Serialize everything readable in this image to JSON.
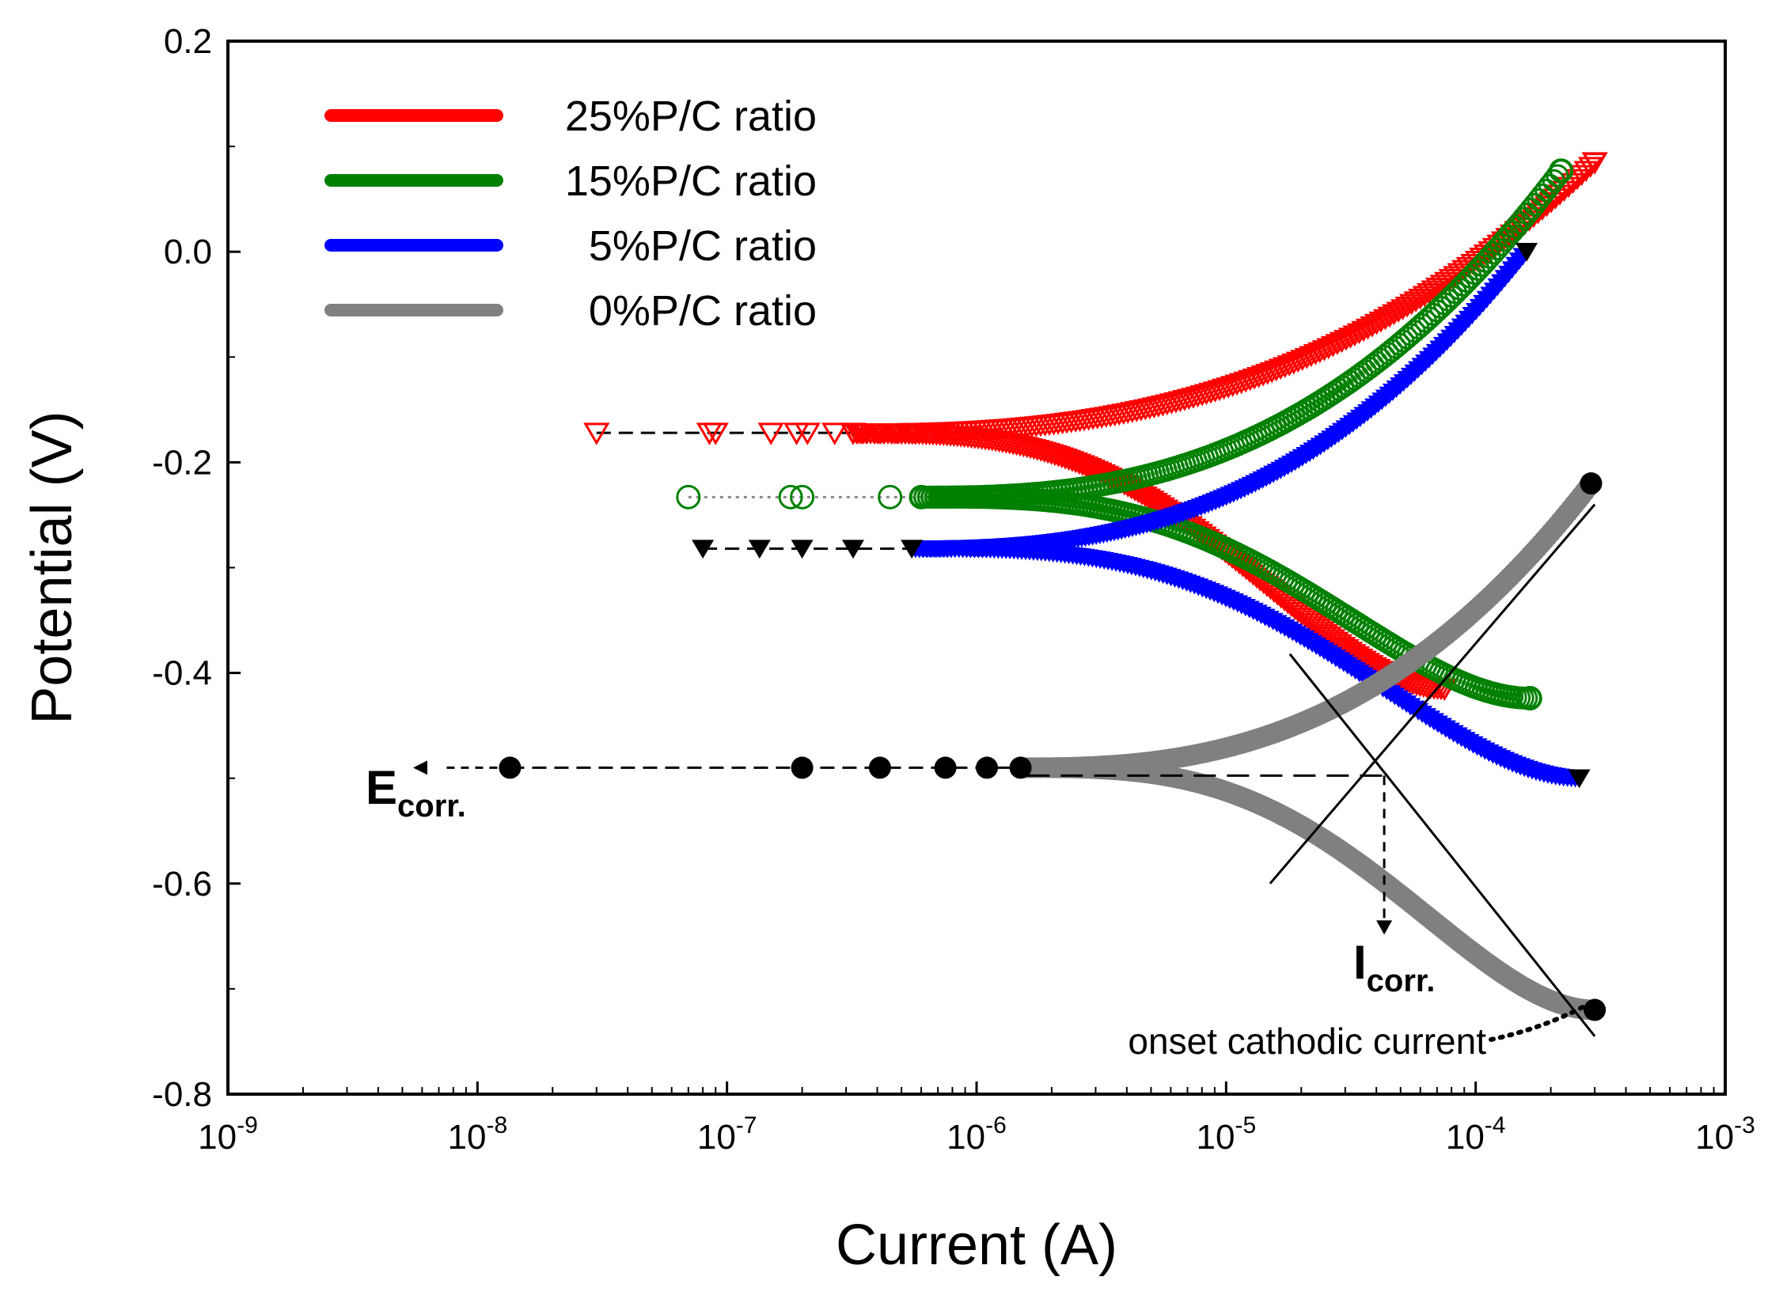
{
  "chart_data": {
    "type": "scatter",
    "xlabel": "Current (A)",
    "ylabel": "Potential (V)",
    "xscale": "log",
    "xlim": [
      1e-09,
      0.001
    ],
    "ylim": [
      -0.8,
      0.2
    ],
    "x_ticks": [
      {
        "base": "10",
        "exp": "-9"
      },
      {
        "base": "10",
        "exp": "-8"
      },
      {
        "base": "10",
        "exp": "-7"
      },
      {
        "base": "10",
        "exp": "-6"
      },
      {
        "base": "10",
        "exp": "-5"
      },
      {
        "base": "10",
        "exp": "-4"
      },
      {
        "base": "10",
        "exp": "-3"
      }
    ],
    "y_ticks": [
      "0.2",
      "0.0",
      "-0.2",
      "-0.4",
      "-0.6",
      "-0.8"
    ],
    "legend_position": "top-left",
    "series": [
      {
        "name": "25%P/C ratio",
        "color": "#ff0000",
        "marker": "triangle-down-open",
        "ecorr": -0.172,
        "anodic_end": [
          0.0003,
          0.085
        ],
        "cathodic_end": [
          7.5e-05,
          -0.415
        ],
        "sparse_markers": [
          3e-08,
          8.5e-08,
          9e-08,
          1.5e-07,
          1.9e-07,
          2.1e-07,
          2.7e-07,
          3.2e-07
        ]
      },
      {
        "name": "15%P/C ratio",
        "color": "#008000",
        "marker": "circle-open",
        "ecorr": -0.233,
        "anodic_end": [
          0.00022,
          0.077
        ],
        "cathodic_end": [
          0.000165,
          -0.424
        ],
        "sparse_markers": [
          7e-08,
          1.8e-07,
          2e-07,
          4.5e-07,
          6e-07
        ]
      },
      {
        "name": "5%P/C ratio",
        "color": "#0000ff",
        "marker": "triangle-down-filled",
        "ecorr": -0.282,
        "anodic_end": [
          0.00016,
          0.0
        ],
        "cathodic_end": [
          0.00026,
          -0.5
        ],
        "sparse_markers": [
          8e-08,
          1.35e-07,
          2e-07,
          3.2e-07,
          5.5e-07
        ]
      },
      {
        "name": "0%P/C ratio",
        "color": "#808080",
        "marker": "circle-filled",
        "ecorr": -0.49,
        "anodic_end": [
          0.00029,
          -0.22
        ],
        "cathodic_end": [
          0.0003,
          -0.72
        ],
        "sparse_markers": [
          1.35e-08,
          2e-07,
          4.1e-07,
          7.5e-07,
          1.1e-06,
          1.5e-06
        ]
      }
    ],
    "tafel_lines": [
      {
        "from": [
          0.0003,
          -0.24
        ],
        "to": [
          1.5e-05,
          -0.6
        ]
      },
      {
        "from": [
          1.8e-05,
          -0.382
        ],
        "to": [
          0.0003,
          -0.745
        ]
      }
    ],
    "annotations": {
      "ecorr": {
        "main": "E",
        "sub": "corr.",
        "value_V": -0.49
      },
      "icorr": {
        "main": "I",
        "sub": "corr.",
        "value_A": 4.3e-05
      },
      "onset": {
        "text": "onset cathodic current",
        "point": [
          0.00028,
          -0.715
        ]
      }
    }
  }
}
